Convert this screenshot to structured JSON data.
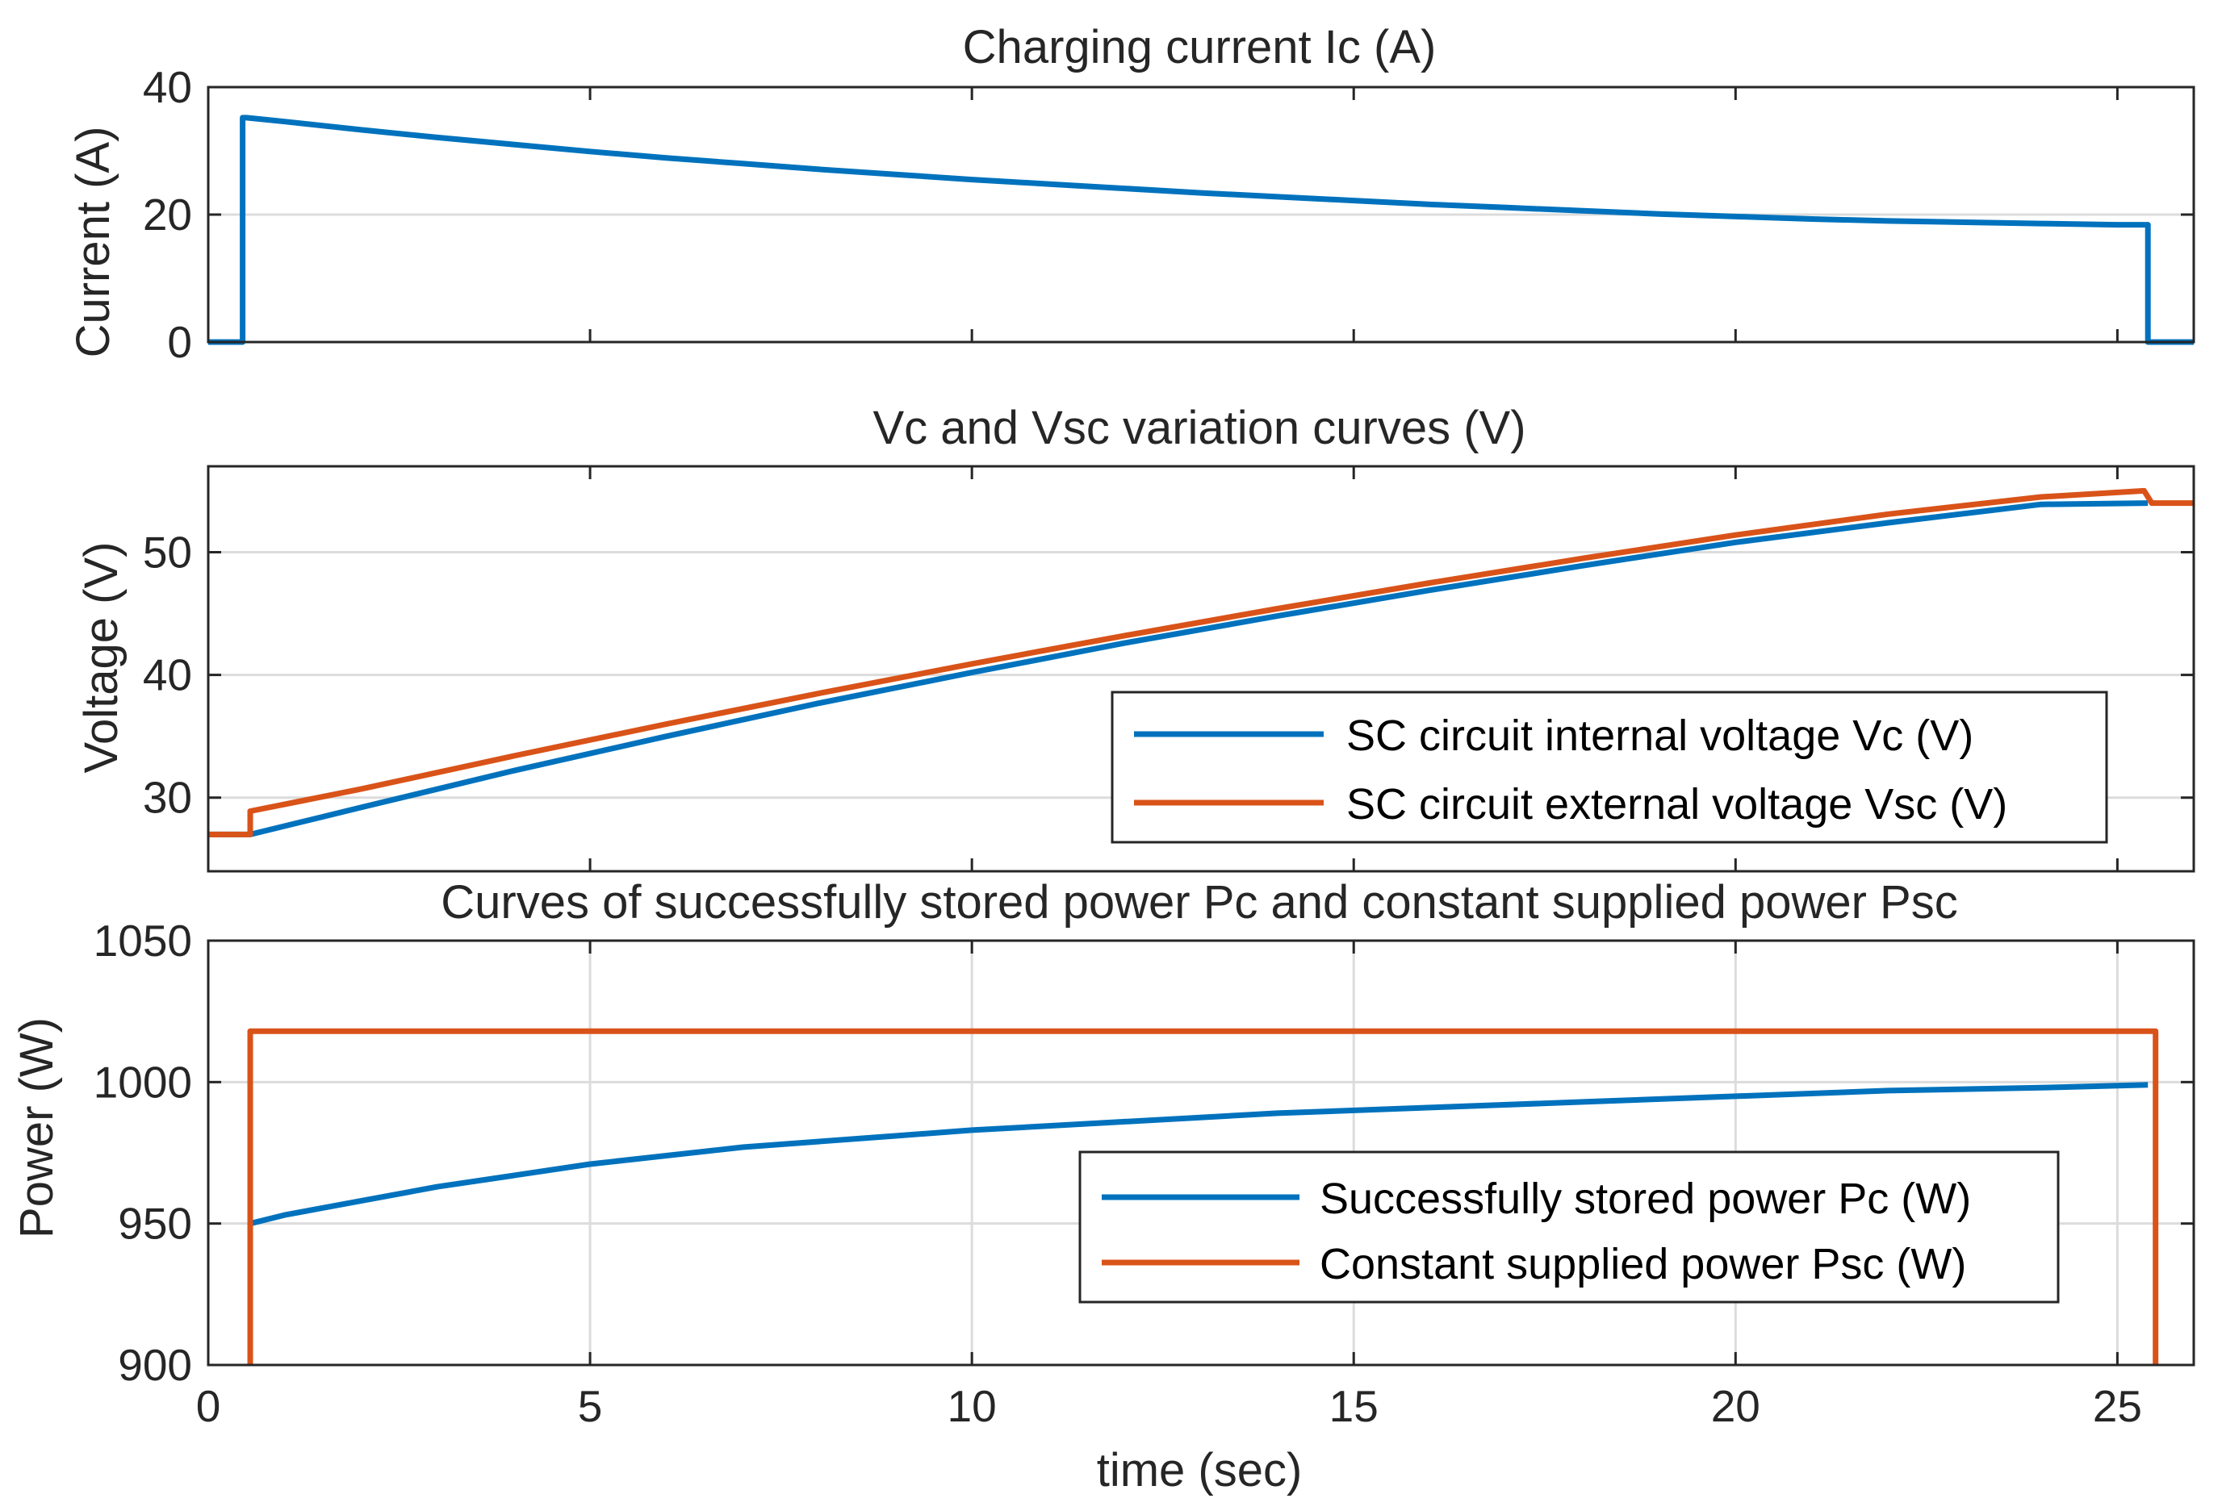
{
  "chart_data": [
    {
      "type": "line",
      "title": "Charging current Ic (A)",
      "xlabel": "",
      "ylabel": "Current (A)",
      "xlim": [
        0,
        26
      ],
      "ylim": [
        0,
        40
      ],
      "xticks": [
        0,
        5,
        10,
        15,
        20,
        25
      ],
      "yticks": [
        0,
        20,
        40
      ],
      "show_xticklabels": false,
      "grid": "horizontal",
      "legend": null,
      "series": [
        {
          "name": "Charging current Ic (A)",
          "color": "#0072BD",
          "x": [
            0,
            0.45,
            0.45,
            0.5,
            1,
            2,
            3,
            4,
            5,
            6,
            7,
            8,
            9,
            10,
            11,
            12,
            13,
            14,
            15,
            16,
            17,
            18,
            19,
            20,
            21,
            22,
            23,
            24,
            25,
            25.4,
            25.4,
            26
          ],
          "y": [
            0,
            0,
            35.2,
            35.2,
            34.6,
            33.3,
            32.1,
            31.0,
            29.9,
            28.9,
            28.0,
            27.1,
            26.3,
            25.5,
            24.8,
            24.1,
            23.4,
            22.8,
            22.2,
            21.6,
            21.1,
            20.6,
            20.1,
            19.7,
            19.3,
            19.0,
            18.8,
            18.6,
            18.4,
            18.4,
            0,
            0
          ]
        }
      ]
    },
    {
      "type": "line",
      "title": "Vc and Vsc variation curves (V)",
      "xlabel": "",
      "ylabel": "Voltage (V)",
      "xlim": [
        0,
        26
      ],
      "ylim": [
        24,
        57
      ],
      "xticks": [
        0,
        5,
        10,
        15,
        20,
        25
      ],
      "yticks": [
        30,
        40,
        50
      ],
      "show_xticklabels": false,
      "grid": "horizontal",
      "legend": "lower-right",
      "series": [
        {
          "name": "SC circuit internal voltage Vc (V)",
          "color": "#0072BD",
          "x": [
            0,
            0.55,
            2,
            4,
            6,
            8,
            10,
            12,
            14,
            16,
            18,
            20,
            22,
            24,
            25.4
          ],
          "y": [
            27,
            27,
            29.2,
            32.2,
            35.0,
            37.7,
            40.2,
            42.6,
            44.8,
            46.9,
            48.9,
            50.8,
            52.4,
            53.9,
            54
          ]
        },
        {
          "name": "SC circuit external voltage Vsc (V)",
          "color": "#D95319",
          "x": [
            0,
            0.55,
            0.55,
            2,
            4,
            6,
            8,
            10,
            12,
            14,
            16,
            18,
            20,
            22,
            24,
            25.35,
            25.45,
            26
          ],
          "y": [
            27,
            27,
            28.9,
            30.7,
            33.4,
            36.0,
            38.5,
            40.9,
            43.2,
            45.4,
            47.5,
            49.5,
            51.4,
            53.1,
            54.5,
            55,
            54,
            54
          ]
        }
      ]
    },
    {
      "type": "line",
      "title": "Curves of successfully stored power Pc and constant supplied power Psc",
      "xlabel": "time (sec)",
      "ylabel": "Power (W)",
      "xlim": [
        0,
        26
      ],
      "ylim": [
        900,
        1050
      ],
      "xticks": [
        0,
        5,
        10,
        15,
        20,
        25
      ],
      "yticks": [
        900,
        950,
        1000,
        1050
      ],
      "show_xticklabels": true,
      "grid": "both",
      "legend": "lower-right",
      "series": [
        {
          "name": "Successfully stored power Pc (W)",
          "color": "#0072BD",
          "x": [
            0.55,
            1,
            2,
            3,
            4,
            5,
            6,
            7,
            8,
            9,
            10,
            12,
            14,
            16,
            18,
            20,
            22,
            24,
            25.4
          ],
          "y": [
            950,
            953,
            958,
            963,
            967,
            971,
            974,
            977,
            979,
            981,
            983,
            986,
            989,
            991,
            993,
            995,
            997,
            998,
            999
          ]
        },
        {
          "name": "Constant supplied power Psc (W)",
          "color": "#D95319",
          "x": [
            0.55,
            0.55,
            25.5,
            25.5
          ],
          "y": [
            900,
            1018,
            1018,
            900
          ]
        }
      ]
    }
  ]
}
